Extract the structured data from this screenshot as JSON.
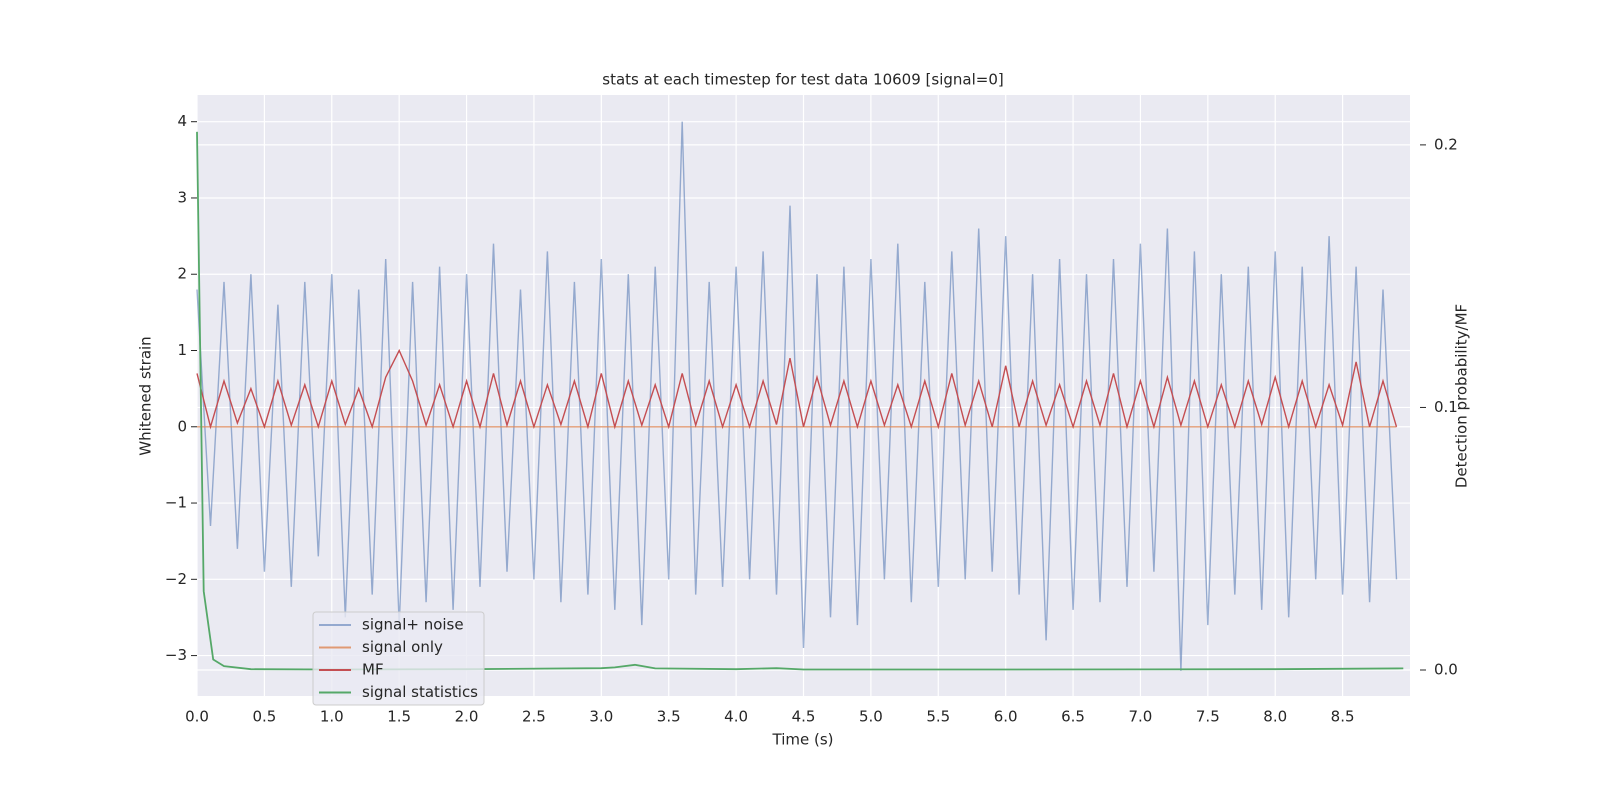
{
  "chart_data": {
    "type": "line",
    "title": "stats at each timestep for test data 10609 [signal=0]",
    "xlabel": "Time (s)",
    "ylabel": "Whitened strain",
    "y2label": "Detection probability/MF",
    "xlim": [
      0,
      9.0
    ],
    "ylim": [
      -3.53,
      4.35
    ],
    "y2lim": [
      -0.0099,
      0.219
    ],
    "xticks": [
      {
        "value": 0,
        "label": "0.0"
      },
      0.5,
      {
        "value": 1,
        "label": "1.0"
      },
      1.5,
      {
        "value": 2,
        "label": "2.0"
      },
      2.5,
      {
        "value": 3,
        "label": "3.0"
      },
      3.5,
      {
        "value": 4,
        "label": "4.0"
      },
      4.5,
      {
        "value": 5,
        "label": "5.0"
      },
      5.5,
      {
        "value": 6,
        "label": "6.0"
      },
      6.5,
      {
        "value": 7,
        "label": "7.0"
      },
      7.5,
      {
        "value": 8,
        "label": "8.0"
      },
      8.5
    ],
    "yticks": [
      {
        "value": -3,
        "label": "−3"
      },
      {
        "value": -2,
        "label": "−2"
      },
      {
        "value": -1,
        "label": "−1"
      },
      0,
      1,
      2,
      3,
      4
    ],
    "y2ticks": [
      {
        "value": 0,
        "label": "0.0"
      },
      0.1,
      0.2
    ],
    "grid": true,
    "legend": "lower left",
    "x": [
      0,
      0.1,
      0.2,
      0.3,
      0.4,
      0.5,
      0.6,
      0.7,
      0.8,
      0.9,
      1.0,
      1.1,
      1.2,
      1.3,
      1.4,
      1.5,
      1.6,
      1.7,
      1.8,
      1.9,
      2.0,
      2.1,
      2.2,
      2.3,
      2.4,
      2.5,
      2.6,
      2.7,
      2.8,
      2.9,
      3.0,
      3.1,
      3.2,
      3.3,
      3.4,
      3.5,
      3.6,
      3.7,
      3.8,
      3.9,
      4.0,
      4.1,
      4.2,
      4.3,
      4.4,
      4.5,
      4.6,
      4.7,
      4.8,
      4.9,
      5.0,
      5.1,
      5.2,
      5.3,
      5.4,
      5.5,
      5.6,
      5.7,
      5.8,
      5.9,
      6.0,
      6.1,
      6.2,
      6.3,
      6.4,
      6.5,
      6.6,
      6.7,
      6.8,
      6.9,
      7.0,
      7.1,
      7.2,
      7.3,
      7.4,
      7.5,
      7.6,
      7.7,
      7.8,
      7.9,
      8.0,
      8.1,
      8.2,
      8.3,
      8.4,
      8.5,
      8.6,
      8.7,
      8.8,
      8.9
    ],
    "series": [
      {
        "name": "signal+ noise",
        "color": "#4c72b0",
        "values": [
          1.8,
          -1.3,
          1.9,
          -1.6,
          2.0,
          -1.9,
          1.6,
          -2.1,
          1.9,
          -1.7,
          2.0,
          -2.5,
          1.8,
          -2.2,
          2.2,
          -2.6,
          1.9,
          -2.3,
          2.1,
          -2.4,
          2.0,
          -2.1,
          2.4,
          -1.9,
          1.8,
          -2.0,
          2.3,
          -2.3,
          1.9,
          -2.2,
          2.2,
          -2.4,
          2.0,
          -2.6,
          2.1,
          -2.0,
          4.0,
          -2.2,
          1.9,
          -2.1,
          2.1,
          -2.0,
          2.3,
          -2.2,
          2.9,
          -2.9,
          2.0,
          -2.5,
          2.1,
          -2.6,
          2.2,
          -2.0,
          2.4,
          -2.3,
          1.9,
          -2.1,
          2.3,
          -2.0,
          2.6,
          -1.9,
          2.5,
          -2.2,
          2.0,
          -2.8,
          2.2,
          -2.4,
          2.0,
          -2.3,
          2.2,
          -2.1,
          2.4,
          -1.9,
          2.6,
          -3.2,
          2.3,
          -2.6,
          2.0,
          -2.2,
          2.1,
          -2.4,
          2.3,
          -2.5,
          2.1,
          -2.0,
          2.5,
          -2.2,
          2.1,
          -2.3,
          1.8,
          -2.0
        ]
      },
      {
        "name": "signal only",
        "color": "#dd8452",
        "values": [
          0,
          0,
          0,
          0,
          0,
          0,
          0,
          0,
          0,
          0,
          0,
          0,
          0,
          0,
          0,
          0,
          0,
          0,
          0,
          0,
          0,
          0,
          0,
          0,
          0,
          0,
          0,
          0,
          0,
          0,
          0,
          0,
          0,
          0,
          0,
          0,
          0,
          0,
          0,
          0,
          0,
          0,
          0,
          0,
          0,
          0,
          0,
          0,
          0,
          0,
          0,
          0,
          0,
          0,
          0,
          0,
          0,
          0,
          0,
          0,
          0,
          0,
          0,
          0,
          0,
          0,
          0,
          0,
          0,
          0,
          0,
          0,
          0,
          0,
          0,
          0,
          0,
          0,
          0,
          0,
          0,
          0,
          0,
          0,
          0,
          0,
          0,
          0,
          0,
          0
        ]
      },
      {
        "name": "MF",
        "color": "#c44e52",
        "values": [
          0.7,
          0.0,
          0.6,
          0.05,
          0.5,
          0.0,
          0.6,
          0.02,
          0.55,
          0.0,
          0.6,
          0.03,
          0.5,
          0.0,
          0.65,
          1.0,
          0.6,
          0.02,
          0.55,
          0.0,
          0.6,
          0.0,
          0.7,
          0.02,
          0.6,
          0.0,
          0.55,
          0.03,
          0.6,
          0.0,
          0.7,
          0.0,
          0.6,
          0.02,
          0.55,
          0.0,
          0.7,
          0.02,
          0.6,
          0.0,
          0.55,
          0.0,
          0.6,
          0.03,
          0.9,
          0.0,
          0.65,
          0.02,
          0.6,
          0.0,
          0.6,
          0.02,
          0.55,
          0.0,
          0.6,
          0.0,
          0.7,
          0.02,
          0.6,
          0.0,
          0.8,
          0.0,
          0.6,
          0.02,
          0.55,
          0.0,
          0.6,
          0.02,
          0.7,
          0.0,
          0.6,
          0.0,
          0.65,
          0.02,
          0.6,
          0.0,
          0.55,
          0.0,
          0.6,
          0.03,
          0.65,
          0.0,
          0.6,
          0.0,
          0.55,
          0.02,
          0.85,
          0.0,
          0.6,
          0.0
        ]
      },
      {
        "name": "signal statistics",
        "color": "#55a868",
        "axis": "y2",
        "x": [
          0,
          0.05,
          0.12,
          0.2,
          0.4,
          1.0,
          2.0,
          3.0,
          3.1,
          3.25,
          3.4,
          4.0,
          4.3,
          4.5,
          6.0,
          8.0,
          8.95
        ],
        "values": [
          0.205,
          0.03,
          0.004,
          0.0015,
          0.0003,
          0.0002,
          0.0003,
          0.0007,
          0.001,
          0.002,
          0.0006,
          0.0003,
          0.0007,
          0.0002,
          0.0002,
          0.0003,
          0.0006
        ]
      }
    ]
  }
}
